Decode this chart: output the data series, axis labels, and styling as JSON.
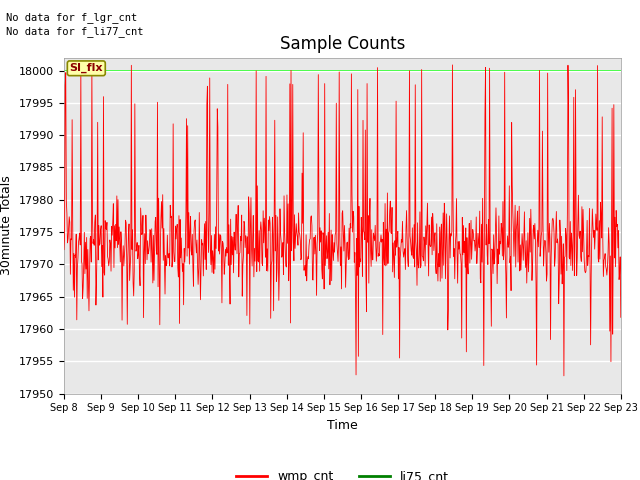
{
  "title": "Sample Counts",
  "xlabel": "Time",
  "ylabel": "30minute Totals",
  "ylim": [
    17950,
    18002
  ],
  "fig_annotations": [
    "No data for f_lgr_cnt",
    "No data for f_li77_cnt"
  ],
  "si_flx_label": "SI_flx",
  "legend_entries": [
    "wmp_cnt",
    "li75_cnt"
  ],
  "legend_colors": [
    "red",
    "green"
  ],
  "wmp_base": 17973,
  "wmp_noise_std": 3.5,
  "li75_val": 18000,
  "n_points": 960,
  "x_tick_labels": [
    "Sep 8",
    "Sep 9",
    "Sep 10",
    "Sep 11",
    "Sep 12",
    "Sep 13",
    "Sep 14",
    "Sep 15",
    "Sep 16",
    "Sep 17",
    "Sep 18",
    "Sep 19",
    "Sep 20",
    "Sep 21",
    "Sep 22",
    "Sep 23"
  ],
  "plot_bg_color": "#e8e8e8",
  "fig_bg_color": "#ffffff",
  "grid_color": "#ffffff",
  "wmp_color": "red",
  "li75_color": "lime",
  "title_fontsize": 12,
  "axis_label_fontsize": 9,
  "tick_label_fontsize": 8
}
